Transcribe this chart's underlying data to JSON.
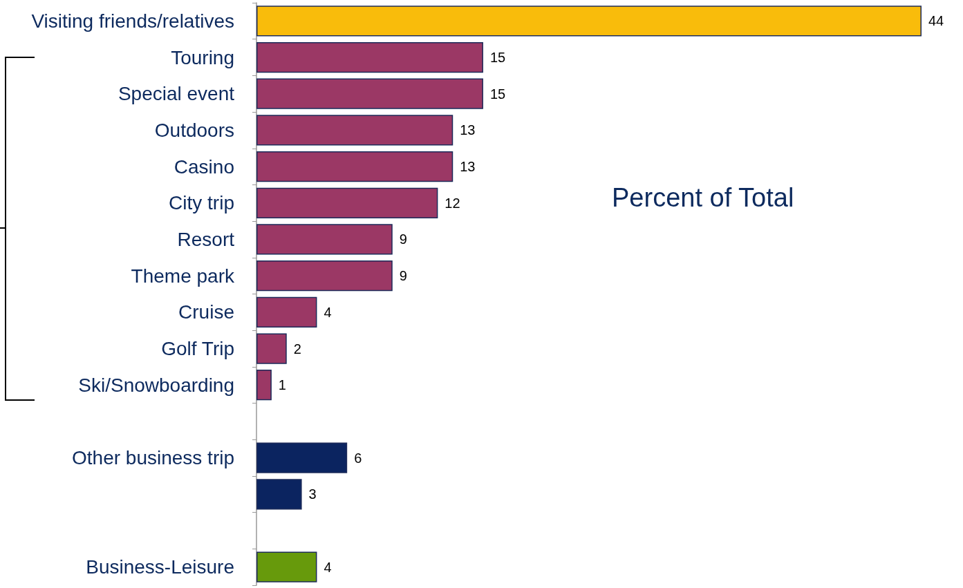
{
  "chart_data": {
    "type": "bar",
    "orientation": "horizontal",
    "title": "Percent of Total",
    "categories": [
      "Visiting friends/relatives",
      "Touring",
      "Special event",
      "Outdoors",
      "Casino",
      "City trip",
      "Resort",
      "Theme park",
      "Cruise",
      "Golf Trip",
      "Ski/Snowboarding",
      null,
      "Other business trip",
      null,
      null,
      "Business-Leisure"
    ],
    "values": [
      44,
      15,
      15,
      13,
      13,
      12,
      9,
      9,
      4,
      2,
      1,
      null,
      6,
      3,
      null,
      4
    ],
    "colors": [
      "#f9bc0b",
      "#9b3865",
      "#9b3865",
      "#9b3865",
      "#9b3865",
      "#9b3865",
      "#9b3865",
      "#9b3865",
      "#9b3865",
      "#9b3865",
      "#9b3865",
      null,
      "#0b2460",
      "#0b2460",
      null,
      "#679a0c"
    ],
    "data_labels": true
  }
}
